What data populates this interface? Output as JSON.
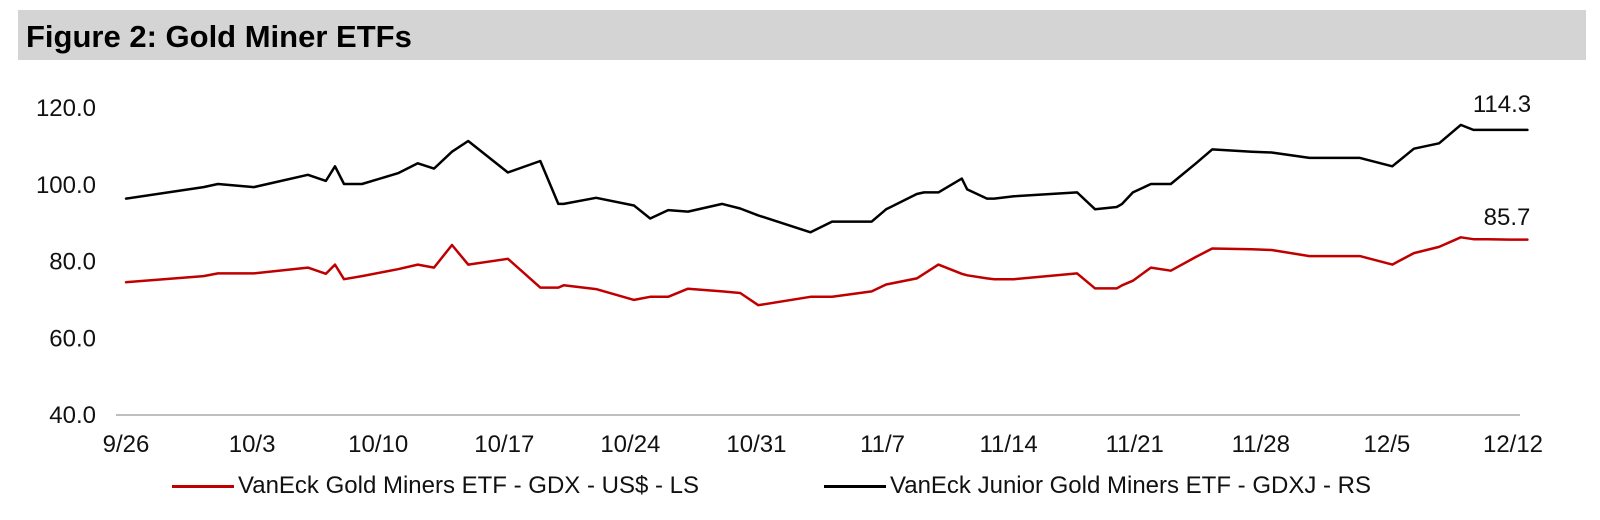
{
  "title": "Figure 2: Gold Miner ETFs",
  "chart_data": {
    "type": "line",
    "title": "Figure 2: Gold Miner ETFs",
    "xlabel": "",
    "ylabel": "",
    "ylim": [
      40,
      120
    ],
    "yticks": [
      "40.0",
      "60.0",
      "80.0",
      "100.0",
      "120.0"
    ],
    "x_ticks": [
      {
        "label": "9/26",
        "day": 0
      },
      {
        "label": "10/3",
        "day": 7
      },
      {
        "label": "10/10",
        "day": 14
      },
      {
        "label": "10/17",
        "day": 21
      },
      {
        "label": "10/24",
        "day": 28
      },
      {
        "label": "10/31",
        "day": 35
      },
      {
        "label": "11/7",
        "day": 42
      },
      {
        "label": "11/14",
        "day": 49
      },
      {
        "label": "11/21",
        "day": 56
      },
      {
        "label": "11/28",
        "day": 63
      },
      {
        "label": "12/5",
        "day": 70
      },
      {
        "label": "12/12",
        "day": 77
      }
    ],
    "x_days": [
      0,
      4.3,
      5.1,
      7.1,
      10.1,
      11.1,
      11.6,
      12.1,
      13.1,
      15.1,
      16.2,
      17.1,
      18.1,
      19,
      21.2,
      23,
      24,
      24.3,
      26.1,
      28.2,
      29.1,
      30.1,
      31.2,
      33.1,
      34.1,
      35.1,
      38,
      39.2,
      41.4,
      42.2,
      43.9,
      44.3,
      45.1,
      46.4,
      46.7,
      47.8,
      48.2,
      49.3,
      52.8,
      53.8,
      55,
      55.3,
      55.9,
      56.9,
      58,
      59.4,
      60.3,
      62.5,
      63.6,
      65.7,
      67.3,
      68.5,
      70.3,
      71.5,
      72.9,
      74.1,
      74.8,
      75.6,
      76.8,
      77.8
    ],
    "series": [
      {
        "name": "VanEck Gold Miners ETF  - GDX  - US$ - LS",
        "color": "#c00000",
        "values": [
          74.6,
          76.2,
          76.9,
          76.9,
          78.4,
          76.8,
          79.2,
          75.4,
          76.2,
          78.0,
          79.2,
          78.4,
          84.3,
          79.2,
          80.7,
          73.2,
          73.2,
          73.8,
          72.8,
          70.0,
          70.8,
          70.8,
          72.9,
          72.2,
          71.8,
          68.6,
          70.8,
          70.8,
          72.2,
          74.0,
          75.6,
          76.8,
          79.2,
          76.8,
          76.4,
          75.6,
          75.4,
          75.4,
          76.9,
          73.0,
          73.0,
          73.8,
          75.0,
          78.4,
          77.6,
          81.2,
          83.4,
          83.2,
          83.0,
          81.4,
          81.4,
          81.4,
          79.2,
          82.2,
          83.8,
          86.3,
          85.8,
          85.8,
          85.7,
          85.7
        ],
        "end_label": "85.7"
      },
      {
        "name": "VanEck Junior Gold Miners ETF - GDXJ - RS",
        "color": "#000000",
        "values": [
          96.4,
          99.4,
          100.2,
          99.4,
          102.6,
          101.0,
          104.8,
          100.2,
          100.2,
          103.0,
          105.6,
          104.2,
          108.6,
          111.4,
          103.2,
          106.2,
          95.0,
          95.0,
          96.6,
          94.6,
          91.2,
          93.4,
          93.0,
          95.0,
          93.8,
          92.0,
          87.6,
          90.4,
          90.4,
          93.6,
          97.6,
          98.0,
          98.0,
          101.6,
          98.8,
          96.4,
          96.4,
          97.0,
          98.0,
          93.6,
          94.2,
          95.0,
          98.0,
          100.2,
          100.2,
          105.6,
          109.2,
          108.6,
          108.4,
          107.0,
          107.0,
          107.0,
          104.8,
          109.4,
          110.8,
          115.6,
          114.3,
          114.3,
          114.3,
          114.3
        ],
        "end_label": "114.3"
      }
    ],
    "legend": "bottom"
  },
  "legend": {
    "gdx_label": "VanEck Gold Miners ETF  - GDX  - US$ - LS",
    "gdxj_label": "VanEck Junior Gold Miners ETF - GDXJ - RS"
  }
}
